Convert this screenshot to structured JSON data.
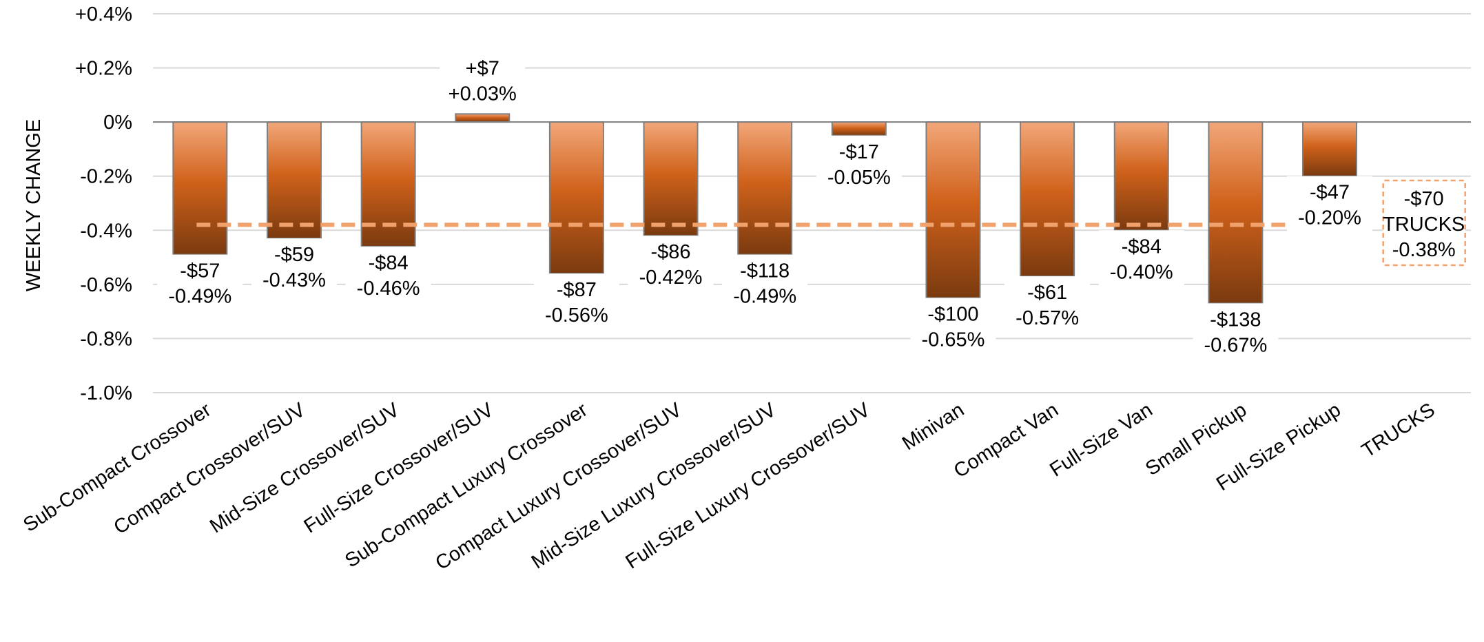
{
  "chart_data": {
    "type": "bar",
    "ylabel": "WEEKLY CHANGE",
    "ylim": [
      -1.0,
      0.4
    ],
    "yticks": [
      0.4,
      0.2,
      0.0,
      -0.2,
      -0.4,
      -0.6,
      -0.8,
      -1.0
    ],
    "ytick_labels": [
      "+0.4%",
      "+0.2%",
      "0%",
      "-0.2%",
      "-0.4%",
      "-0.6%",
      "-0.8%",
      "-1.0%"
    ],
    "grid": true,
    "categories": [
      "Sub-Compact Crossover",
      "Compact Crossover/SUV",
      "Mid-Size Crossover/SUV",
      "Full-Size Crossover/SUV",
      "Sub-Compact Luxury Crossover",
      "Compact Luxury Crossover/SUV",
      "Mid-Size Luxury Crossover/SUV",
      "Full-Size Luxury Crossover/SUV",
      "Minivan",
      "Compact Van",
      "Full-Size Van",
      "Small Pickup",
      "Full-Size Pickup",
      "TRUCKS"
    ],
    "values": [
      -0.49,
      -0.43,
      -0.46,
      0.03,
      -0.56,
      -0.42,
      -0.49,
      -0.05,
      -0.65,
      -0.57,
      -0.4,
      -0.67,
      -0.2,
      null
    ],
    "dollar_labels": [
      "-$57",
      "-$59",
      "-$84",
      "+$7",
      "-$87",
      "-$86",
      "-$118",
      "-$17",
      "-$100",
      "-$61",
      "-$84",
      "-$138",
      "-$47",
      "-$70"
    ],
    "percent_labels": [
      "-0.49%",
      "-0.43%",
      "-0.46%",
      "+0.03%",
      "-0.56%",
      "-0.42%",
      "-0.49%",
      "-0.05%",
      "-0.65%",
      "-0.57%",
      "-0.40%",
      "-0.67%",
      "-0.20%",
      "-0.38%"
    ],
    "reference_line": {
      "value": -0.38,
      "style": "dashed"
    },
    "summary": {
      "category": "TRUCKS",
      "dollar": "-$70",
      "name": "TRUCKS",
      "percent": "-0.38%"
    },
    "colors": {
      "bar_top": "#f2a77a",
      "bar_mid": "#d0621b",
      "bar_bottom": "#7a3a0f",
      "bar_border": "#7f7f7f",
      "reference": "#f0a16c",
      "grid": "#d9d9d9",
      "zero_line": "#7f7f7f"
    }
  }
}
